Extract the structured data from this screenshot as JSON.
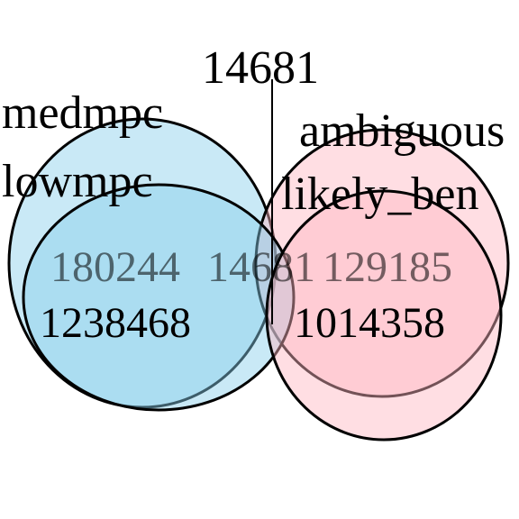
{
  "diagram": {
    "type": "venn",
    "top_label": "14681",
    "sets": [
      {
        "name": "medmpc",
        "color": "#87CEEB",
        "fill_opacity": 0.45
      },
      {
        "name": "lowmpc",
        "color": "#87CEEB",
        "fill_opacity": 0.45
      },
      {
        "name": "ambiguous",
        "color": "#FFB6C1",
        "fill_opacity": 0.45
      },
      {
        "name": "likely_ben",
        "color": "#FFB6C1",
        "fill_opacity": 0.45
      }
    ],
    "region_values": {
      "medmpc": "180244",
      "medmpc_overlap": "14681",
      "ambiguous": "129185",
      "lowmpc": "1238468",
      "likely_ben": "1014358"
    }
  }
}
